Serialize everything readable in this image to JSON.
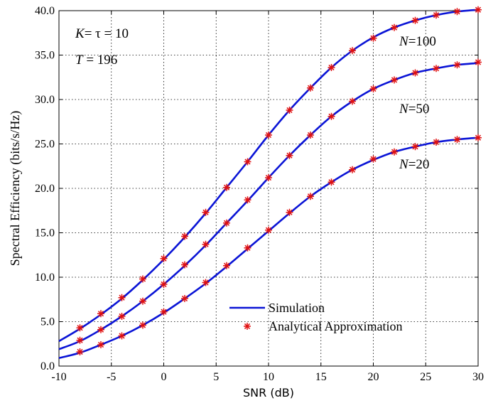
{
  "chart_data": {
    "type": "line",
    "title": "",
    "xlabel": "SNR (dB)",
    "ylabel": "Spectral Efficiency (bits/s/Hz)",
    "xlim": [
      -10,
      30
    ],
    "ylim": [
      0,
      40
    ],
    "x_ticks": [
      "-10",
      "-5",
      "0",
      "5",
      "10",
      "15",
      "20",
      "25",
      "30"
    ],
    "y_ticks": [
      "0.0",
      "5.0",
      "10.0",
      "15.0",
      "20.0",
      "25.0",
      "30.0",
      "35.0",
      "40.0"
    ],
    "grid": true,
    "legend_position": "bottom-center",
    "legend": {
      "line_label": "Simulation",
      "marker_label": "Analytical Approximation"
    },
    "annotations": {
      "params_line1_k": "K",
      "params_line1_rest": "= τ = 10",
      "params_line2_t": "T",
      "params_line2_rest": " = 196"
    },
    "colors": {
      "line": "#0a14d6",
      "marker": "#e01010"
    },
    "series": [
      {
        "name": "N=100",
        "label_var": "N",
        "label_rest": "=100",
        "line_x": [
          -10,
          -8,
          -6,
          -4,
          -2,
          0,
          2,
          4,
          6,
          8,
          10,
          12,
          14,
          16,
          18,
          20,
          22,
          24,
          26,
          28,
          30
        ],
        "line_y": [
          2.8,
          4.2,
          5.8,
          7.6,
          9.7,
          12.0,
          14.5,
          17.2,
          20.1,
          23.0,
          26.0,
          28.8,
          31.3,
          33.6,
          35.5,
          37.0,
          38.1,
          38.9,
          39.5,
          39.9,
          40.1
        ],
        "marker_x": [
          -8,
          -6,
          -4,
          -2,
          0,
          2,
          4,
          6,
          8,
          10,
          12,
          14,
          16,
          18,
          20,
          22,
          24,
          26,
          28,
          30
        ],
        "marker_y": [
          4.3,
          5.9,
          7.7,
          9.8,
          12.1,
          14.6,
          17.3,
          20.1,
          23.0,
          26.0,
          28.8,
          31.3,
          33.6,
          35.5,
          36.9,
          38.1,
          38.9,
          39.5,
          39.9,
          40.1
        ]
      },
      {
        "name": "N=50",
        "label_var": "N",
        "label_rest": "=50",
        "line_x": [
          -10,
          -8,
          -6,
          -4,
          -2,
          0,
          2,
          4,
          6,
          8,
          10,
          12,
          14,
          16,
          18,
          20,
          22,
          24,
          26,
          28,
          30
        ],
        "line_y": [
          1.9,
          2.8,
          4.1,
          5.6,
          7.3,
          9.2,
          11.3,
          13.6,
          16.1,
          18.6,
          21.2,
          23.7,
          26.0,
          28.1,
          29.8,
          31.2,
          32.2,
          33.0,
          33.5,
          33.9,
          34.1
        ],
        "marker_x": [
          -8,
          -6,
          -4,
          -2,
          0,
          2,
          4,
          6,
          8,
          10,
          12,
          14,
          16,
          18,
          20,
          22,
          24,
          26,
          28,
          30
        ],
        "marker_y": [
          2.9,
          4.1,
          5.6,
          7.3,
          9.2,
          11.4,
          13.7,
          16.1,
          18.7,
          21.2,
          23.7,
          26.0,
          28.1,
          29.8,
          31.2,
          32.2,
          33.0,
          33.5,
          33.9,
          34.2
        ]
      },
      {
        "name": "N=20",
        "label_var": "N",
        "label_rest": "=20",
        "line_x": [
          -10,
          -8,
          -6,
          -4,
          -2,
          0,
          2,
          4,
          6,
          8,
          10,
          12,
          14,
          16,
          18,
          20,
          22,
          24,
          26,
          28,
          30
        ],
        "line_y": [
          0.9,
          1.5,
          2.4,
          3.4,
          4.6,
          6.0,
          7.6,
          9.3,
          11.2,
          13.2,
          15.2,
          17.2,
          19.1,
          20.7,
          22.1,
          23.2,
          24.1,
          24.7,
          25.2,
          25.5,
          25.7
        ],
        "marker_x": [
          -8,
          -6,
          -4,
          -2,
          0,
          2,
          4,
          6,
          8,
          10,
          12,
          14,
          16,
          18,
          20,
          22,
          24,
          26,
          28,
          30
        ],
        "marker_y": [
          1.6,
          2.4,
          3.4,
          4.6,
          6.1,
          7.6,
          9.4,
          11.3,
          13.3,
          15.3,
          17.3,
          19.1,
          20.7,
          22.1,
          23.3,
          24.1,
          24.7,
          25.2,
          25.5,
          25.7
        ]
      }
    ]
  }
}
